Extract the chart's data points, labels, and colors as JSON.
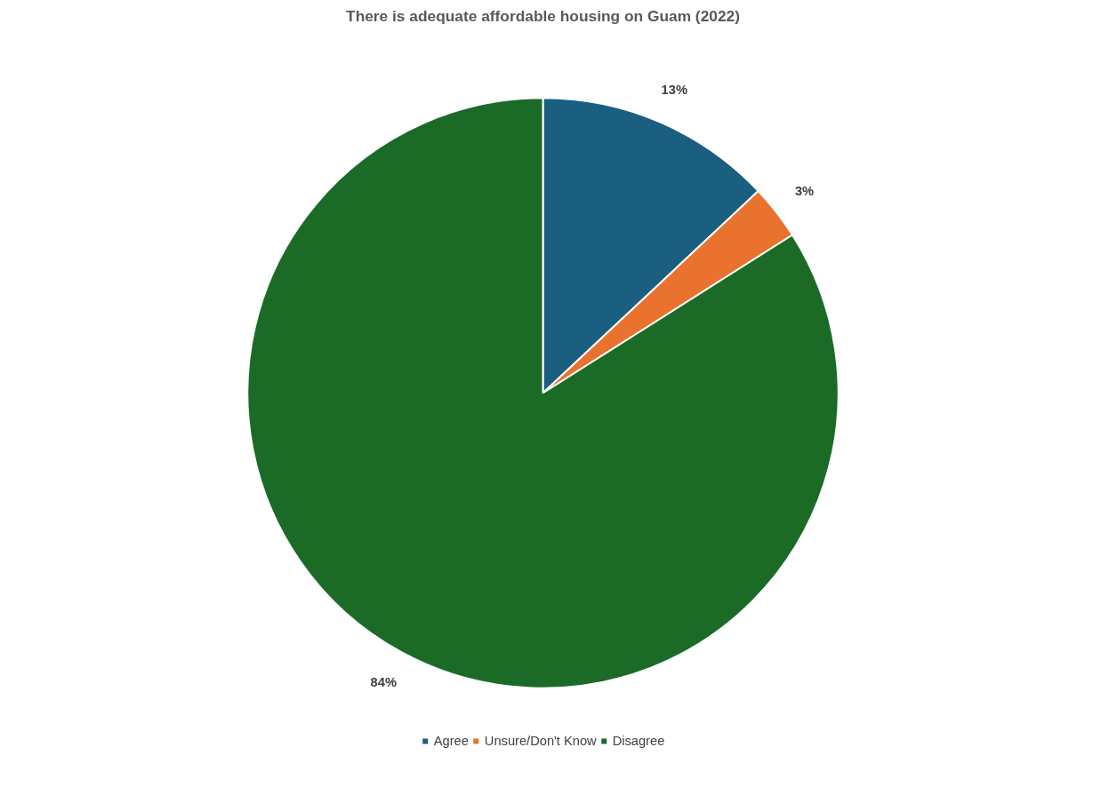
{
  "chart_data": {
    "type": "pie",
    "title": "There is adequate affordable housing on Guam (2022)",
    "categories": [
      "Agree",
      "Unsure/Don't Know",
      "Disagree"
    ],
    "values": [
      13,
      3,
      84
    ],
    "colors": [
      "#1a5e80",
      "#e9722f",
      "#1b6b27"
    ],
    "value_labels": [
      "13%",
      "3%",
      "84%"
    ],
    "legend": "bottom"
  }
}
